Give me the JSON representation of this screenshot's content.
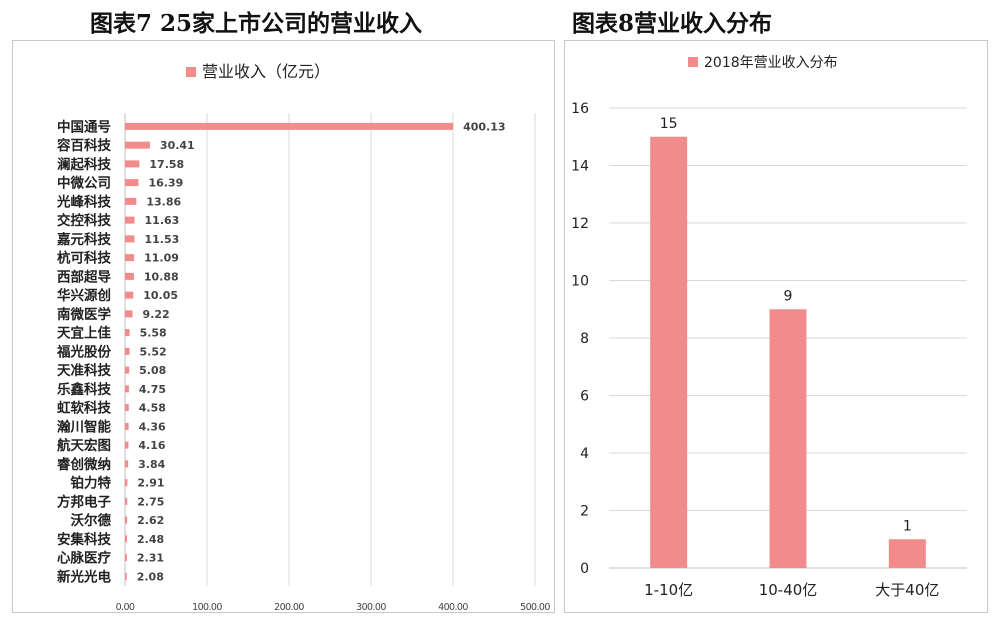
{
  "figures": [
    {
      "title": "图表7 25家上市公司的营业收入"
    },
    {
      "title": "图表8营业收入分布"
    }
  ],
  "colors": {
    "bar": "#f28b8b",
    "grid": "#d9d9d9",
    "axis": "#bfbfbf",
    "text": "#222222",
    "value_text": "#444444"
  },
  "chart_data": [
    {
      "type": "bar",
      "orientation": "horizontal",
      "legend": "营业收入（亿元）",
      "legend_position": "top",
      "categories": [
        "中国通号",
        "容百科技",
        "澜起科技",
        "中微公司",
        "光峰科技",
        "交控科技",
        "嘉元科技",
        "杭可科技",
        "西部超导",
        "华兴源创",
        "南微医学",
        "天宜上佳",
        "福光股份",
        "天准科技",
        "乐鑫科技",
        "虹软科技",
        "瀚川智能",
        "航天宏图",
        "睿创微纳",
        "铂力特",
        "方邦电子",
        "沃尔德",
        "安集科技",
        "心脉医疗",
        "新光光电"
      ],
      "values": [
        400.13,
        30.41,
        17.58,
        16.39,
        13.86,
        11.63,
        11.53,
        11.09,
        10.88,
        10.05,
        9.22,
        5.58,
        5.52,
        5.08,
        4.75,
        4.58,
        4.36,
        4.16,
        3.84,
        2.91,
        2.75,
        2.62,
        2.48,
        2.31,
        2.08
      ],
      "value_labels": [
        "400.13",
        "30.41",
        "17.58",
        "16.39",
        "13.86",
        "11.63",
        "11.53",
        "11.09",
        "10.88",
        "10.05",
        "9.22",
        "5.58",
        "5.52",
        "5.08",
        "4.75",
        "4.58",
        "4.36",
        "4.16",
        "3.84",
        "2.91",
        "2.75",
        "2.62",
        "2.48",
        "2.31",
        "2.08"
      ],
      "xlim": [
        0,
        500
      ],
      "x_ticks": [
        0,
        100,
        200,
        300,
        400,
        500
      ],
      "x_tick_labels": [
        "0.00",
        "100.00",
        "200.00",
        "300.00",
        "400.00",
        "500.00"
      ],
      "grid": "vertical"
    },
    {
      "type": "bar",
      "legend": "2018年营业收入分布",
      "legend_position": "top",
      "categories": [
        "1-10亿",
        "10-40亿",
        "大于40亿"
      ],
      "values": [
        15,
        9,
        1
      ],
      "value_labels": [
        "15",
        "9",
        "1"
      ],
      "ylim": [
        0,
        16
      ],
      "y_ticks": [
        0,
        2,
        4,
        6,
        8,
        10,
        12,
        14,
        16
      ],
      "y_tick_labels": [
        "0",
        "2",
        "4",
        "6",
        "8",
        "10",
        "12",
        "14",
        "16"
      ],
      "grid": "horizontal"
    }
  ]
}
